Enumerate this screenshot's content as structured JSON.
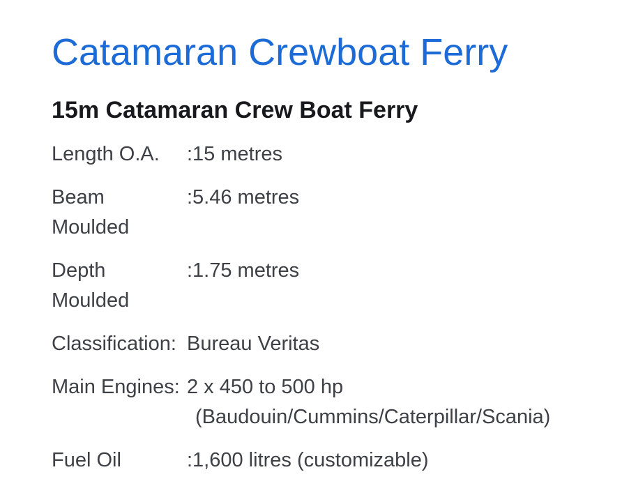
{
  "page": {
    "title": "Catamaran Crewboat Ferry",
    "subtitle": "15m Catamaran Crew Boat Ferry"
  },
  "colors": {
    "accent_blue": "#1c6bd6",
    "body_text": "#3d4045",
    "subtitle_text": "#17191c",
    "background": "#ffffff"
  },
  "specs": [
    {
      "label": "Length O.A.",
      "value": ":15 metres"
    },
    {
      "label": "Beam\nMoulded",
      "value": ":5.46 metres"
    },
    {
      "label": "Depth\nMoulded",
      "value": ":1.75 metres"
    },
    {
      "label": "Classification:",
      "value": "Bureau Veritas"
    },
    {
      "label": "Main Engines:",
      "value": "2 x 450 to 500 hp",
      "value2": "(Baudouin/Cummins/Caterpillar/Scania)"
    },
    {
      "label": "Fuel Oil",
      "value": ":1,600 litres (customizable)"
    }
  ]
}
